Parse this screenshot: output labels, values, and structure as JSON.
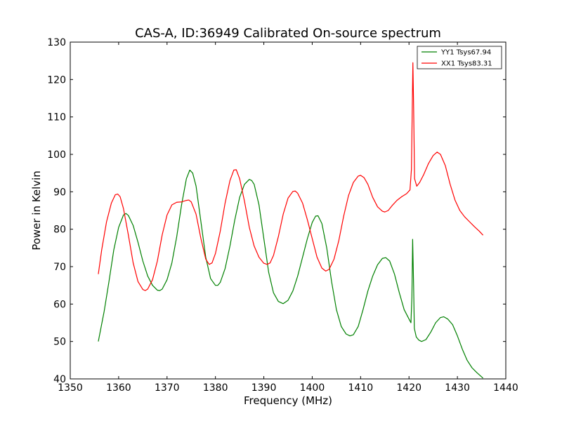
{
  "chart_data": {
    "type": "line",
    "title": "CAS-A, ID:36949 Calibrated On-source spectrum",
    "xlabel": "Frequency (MHz)",
    "ylabel": "Power in Kelvin",
    "xlim": [
      1350,
      1440
    ],
    "ylim": [
      40,
      130
    ],
    "xticks": [
      "1350",
      "1360",
      "1370",
      "1380",
      "1390",
      "1400",
      "1410",
      "1420",
      "1430",
      "1440"
    ],
    "yticks": [
      "40",
      "50",
      "60",
      "70",
      "80",
      "90",
      "100",
      "110",
      "120",
      "130"
    ],
    "grid": false,
    "legend_position": "top-right",
    "series": [
      {
        "name": "YY1 Tsys67.94",
        "color": "#008000",
        "points": [
          [
            1355.8,
            50.0
          ],
          [
            1357.0,
            58.0
          ],
          [
            1358.0,
            66.0
          ],
          [
            1359.0,
            74.5
          ],
          [
            1360.0,
            80.5
          ],
          [
            1361.0,
            83.8
          ],
          [
            1361.5,
            84.2
          ],
          [
            1362.0,
            83.7
          ],
          [
            1363.0,
            81.0
          ],
          [
            1364.0,
            76.5
          ],
          [
            1365.0,
            71.5
          ],
          [
            1366.0,
            67.5
          ],
          [
            1367.0,
            65.0
          ],
          [
            1368.0,
            63.7
          ],
          [
            1368.5,
            63.6
          ],
          [
            1369.0,
            64.0
          ],
          [
            1370.0,
            66.5
          ],
          [
            1371.0,
            71.0
          ],
          [
            1372.0,
            78.0
          ],
          [
            1373.0,
            86.5
          ],
          [
            1374.0,
            93.5
          ],
          [
            1374.7,
            95.8
          ],
          [
            1375.3,
            95.0
          ],
          [
            1376.0,
            91.5
          ],
          [
            1377.0,
            82.0
          ],
          [
            1378.0,
            72.5
          ],
          [
            1379.0,
            66.8
          ],
          [
            1380.0,
            65.0
          ],
          [
            1380.5,
            65.0
          ],
          [
            1381.0,
            65.8
          ],
          [
            1382.0,
            69.5
          ],
          [
            1383.0,
            75.5
          ],
          [
            1384.0,
            82.5
          ],
          [
            1385.0,
            88.5
          ],
          [
            1386.0,
            92.0
          ],
          [
            1387.0,
            93.3
          ],
          [
            1387.5,
            93.0
          ],
          [
            1388.0,
            92.0
          ],
          [
            1389.0,
            86.5
          ],
          [
            1390.0,
            77.5
          ],
          [
            1391.0,
            68.5
          ],
          [
            1392.0,
            63.0
          ],
          [
            1393.0,
            60.7
          ],
          [
            1394.0,
            60.1
          ],
          [
            1395.0,
            61.0
          ],
          [
            1396.0,
            63.5
          ],
          [
            1397.0,
            67.5
          ],
          [
            1398.0,
            72.5
          ],
          [
            1399.0,
            77.5
          ],
          [
            1400.0,
            81.8
          ],
          [
            1400.7,
            83.5
          ],
          [
            1401.2,
            83.6
          ],
          [
            1402.0,
            81.5
          ],
          [
            1403.0,
            75.0
          ],
          [
            1404.0,
            66.0
          ],
          [
            1405.0,
            58.5
          ],
          [
            1406.0,
            54.0
          ],
          [
            1407.0,
            52.0
          ],
          [
            1407.8,
            51.5
          ],
          [
            1408.5,
            51.8
          ],
          [
            1409.5,
            54.0
          ],
          [
            1410.5,
            58.5
          ],
          [
            1411.5,
            63.5
          ],
          [
            1412.5,
            67.5
          ],
          [
            1413.5,
            70.5
          ],
          [
            1414.5,
            72.2
          ],
          [
            1415.2,
            72.4
          ],
          [
            1416.0,
            71.5
          ],
          [
            1417.0,
            68.0
          ],
          [
            1418.0,
            63.0
          ],
          [
            1419.0,
            58.5
          ],
          [
            1420.0,
            56.0
          ],
          [
            1420.4,
            55.0
          ],
          [
            1420.6,
            62.0
          ],
          [
            1420.75,
            77.3
          ],
          [
            1420.95,
            65.0
          ],
          [
            1421.1,
            53.5
          ],
          [
            1421.5,
            51.2
          ],
          [
            1422.0,
            50.4
          ],
          [
            1422.6,
            50.0
          ],
          [
            1423.5,
            50.5
          ],
          [
            1424.5,
            52.5
          ],
          [
            1425.5,
            55.0
          ],
          [
            1426.5,
            56.4
          ],
          [
            1427.2,
            56.6
          ],
          [
            1428.0,
            56.0
          ],
          [
            1429.0,
            54.5
          ],
          [
            1430.0,
            51.5
          ],
          [
            1431.0,
            48.0
          ],
          [
            1432.0,
            45.0
          ],
          [
            1433.0,
            43.0
          ],
          [
            1434.0,
            41.7
          ],
          [
            1435.3,
            40.2
          ]
        ]
      },
      {
        "name": "XX1 Tsys83.31",
        "color": "#ff0000",
        "points": [
          [
            1355.8,
            68.0
          ],
          [
            1356.5,
            74.5
          ],
          [
            1357.5,
            82.0
          ],
          [
            1358.5,
            87.0
          ],
          [
            1359.3,
            89.2
          ],
          [
            1359.8,
            89.4
          ],
          [
            1360.3,
            88.7
          ],
          [
            1361.0,
            85.5
          ],
          [
            1362.0,
            78.5
          ],
          [
            1363.0,
            71.0
          ],
          [
            1364.0,
            66.0
          ],
          [
            1365.0,
            63.9
          ],
          [
            1365.5,
            63.6
          ],
          [
            1366.0,
            64.0
          ],
          [
            1367.0,
            66.5
          ],
          [
            1368.0,
            71.5
          ],
          [
            1369.0,
            78.5
          ],
          [
            1370.0,
            83.8
          ],
          [
            1371.0,
            86.5
          ],
          [
            1372.0,
            87.2
          ],
          [
            1373.0,
            87.3
          ],
          [
            1374.0,
            87.7
          ],
          [
            1374.5,
            87.8
          ],
          [
            1375.0,
            87.3
          ],
          [
            1376.0,
            84.0
          ],
          [
            1377.0,
            77.5
          ],
          [
            1378.0,
            72.0
          ],
          [
            1378.7,
            70.6
          ],
          [
            1379.3,
            71.0
          ],
          [
            1380.0,
            73.5
          ],
          [
            1381.0,
            79.5
          ],
          [
            1382.0,
            87.0
          ],
          [
            1383.0,
            93.0
          ],
          [
            1383.8,
            95.8
          ],
          [
            1384.3,
            95.9
          ],
          [
            1385.0,
            93.5
          ],
          [
            1386.0,
            87.5
          ],
          [
            1387.0,
            80.5
          ],
          [
            1388.0,
            75.5
          ],
          [
            1389.0,
            72.5
          ],
          [
            1390.0,
            70.9
          ],
          [
            1390.7,
            70.6
          ],
          [
            1391.3,
            71.0
          ],
          [
            1392.0,
            73.0
          ],
          [
            1393.0,
            78.0
          ],
          [
            1394.0,
            84.0
          ],
          [
            1395.0,
            88.3
          ],
          [
            1396.0,
            90.1
          ],
          [
            1396.5,
            90.2
          ],
          [
            1397.0,
            89.6
          ],
          [
            1398.0,
            87.0
          ],
          [
            1399.0,
            82.5
          ],
          [
            1400.0,
            77.5
          ],
          [
            1401.0,
            72.5
          ],
          [
            1402.0,
            69.6
          ],
          [
            1402.8,
            68.8
          ],
          [
            1403.5,
            69.3
          ],
          [
            1404.5,
            72.0
          ],
          [
            1405.5,
            77.0
          ],
          [
            1406.5,
            83.5
          ],
          [
            1407.5,
            89.0
          ],
          [
            1408.5,
            92.5
          ],
          [
            1409.5,
            94.2
          ],
          [
            1410.0,
            94.4
          ],
          [
            1410.7,
            93.8
          ],
          [
            1411.5,
            92.0
          ],
          [
            1412.5,
            88.5
          ],
          [
            1413.5,
            86.0
          ],
          [
            1414.5,
            84.8
          ],
          [
            1415.0,
            84.6
          ],
          [
            1415.7,
            85.0
          ],
          [
            1416.5,
            86.3
          ],
          [
            1417.5,
            87.7
          ],
          [
            1418.5,
            88.7
          ],
          [
            1419.5,
            89.5
          ],
          [
            1420.2,
            90.5
          ],
          [
            1420.5,
            96.0
          ],
          [
            1420.7,
            115.0
          ],
          [
            1420.8,
            124.5
          ],
          [
            1420.95,
            113.0
          ],
          [
            1421.15,
            93.5
          ],
          [
            1421.6,
            91.5
          ],
          [
            1422.2,
            92.5
          ],
          [
            1423.0,
            94.5
          ],
          [
            1424.0,
            97.5
          ],
          [
            1425.0,
            99.7
          ],
          [
            1425.8,
            100.6
          ],
          [
            1426.5,
            100.0
          ],
          [
            1427.5,
            97.0
          ],
          [
            1428.5,
            92.0
          ],
          [
            1429.5,
            87.8
          ],
          [
            1430.5,
            85.0
          ],
          [
            1431.5,
            83.3
          ],
          [
            1432.5,
            82.0
          ],
          [
            1433.5,
            80.7
          ],
          [
            1434.5,
            79.5
          ],
          [
            1435.3,
            78.4
          ]
        ]
      }
    ]
  }
}
